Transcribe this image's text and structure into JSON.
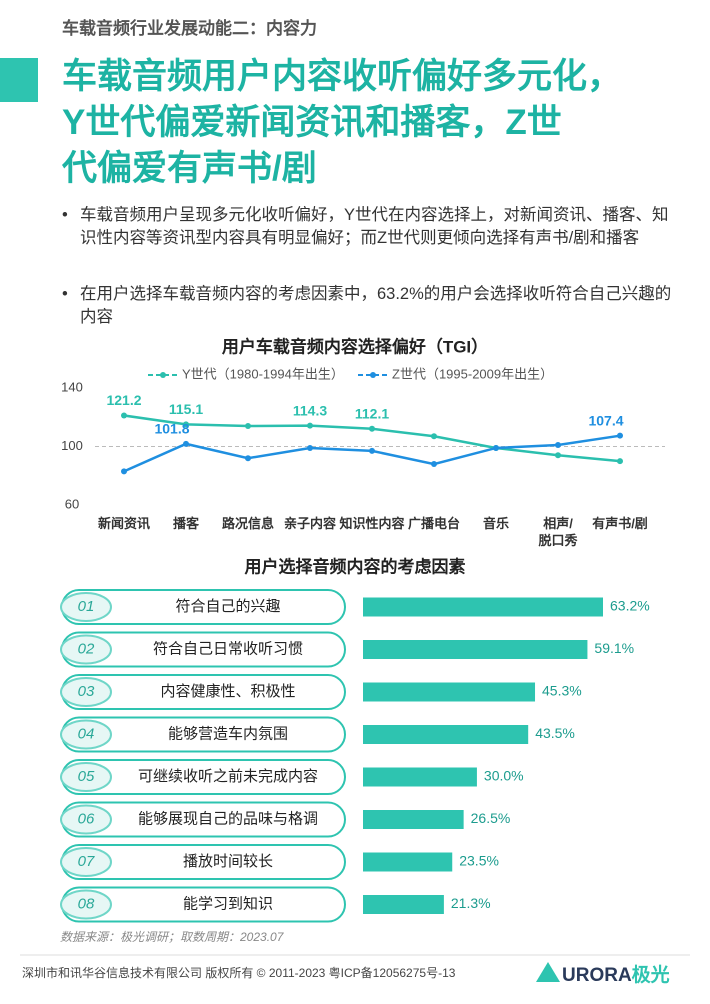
{
  "header": {
    "section": "车载音频行业发展动能二：内容力",
    "title_lines": [
      "车载音频用户内容收听偏好多元化，",
      "Y世代偏爱新闻资讯和播客，Z世",
      "代偏爱有声书/剧"
    ]
  },
  "bullets": [
    "车载音频用户呈现多元化收听偏好，Y世代在内容选择上，对新闻资讯、播客、知识性内容等资讯型内容具有明显偏好；而Z世代则更倾向选择有声书/剧和播客",
    "在用户选择车载音频内容的考虑因素中，63.2%的用户会选择收听符合自己兴趣的内容"
  ],
  "chart_data": [
    {
      "type": "line",
      "title": "用户车载音频内容选择偏好（TGI）",
      "categories": [
        "新闻资讯",
        "播客",
        "路况信息",
        "亲子内容",
        "知识性内容",
        "广播电台",
        "音乐",
        "相声/\n脱口秀",
        "有声书/剧"
      ],
      "series": [
        {
          "name": "Y世代（1980-1994年出生）",
          "color": "#2bbfae",
          "values": [
            121.2,
            115.1,
            114,
            114.3,
            112.1,
            107,
            99,
            94,
            90
          ],
          "value_labels": [
            "121.2",
            "115.1",
            null,
            "114.3",
            "112.1",
            null,
            null,
            null,
            null
          ]
        },
        {
          "name": "Z世代（1995-2009年出生）",
          "color": "#1f8fe0",
          "values": [
            83,
            101.8,
            92,
            99,
            97,
            88,
            99,
            101,
            107.4
          ],
          "value_labels": [
            null,
            "101.8",
            null,
            null,
            null,
            null,
            null,
            null,
            "107.4"
          ]
        }
      ],
      "ylim": [
        60,
        140
      ],
      "yticks": [
        60,
        100,
        140
      ],
      "reference_line": 100
    },
    {
      "type": "bar",
      "orientation": "horizontal",
      "title": "用户选择音频内容的考虑因素",
      "ranks": [
        "01",
        "02",
        "03",
        "04",
        "05",
        "06",
        "07",
        "08"
      ],
      "categories": [
        "符合自己的兴趣",
        "符合自己日常收听习惯",
        "内容健康性、积极性",
        "能够营造车内氛围",
        "可继续收听之前未完成内容",
        "能够展现自己的品味与格调",
        "播放时间较长",
        "能学习到知识"
      ],
      "values": [
        63.2,
        59.1,
        45.3,
        43.5,
        30.0,
        26.5,
        23.5,
        21.3
      ],
      "value_labels": [
        "63.2%",
        "59.1%",
        "45.3%",
        "43.5%",
        "30.0%",
        "26.5%",
        "23.5%",
        "21.3%"
      ],
      "color": "#2ec4b0"
    }
  ],
  "source": "数据来源：极光调研；取数周期：2023.07",
  "footer": {
    "text": "深圳市和讯华谷信息技术有限公司 版权所有 © 2011-2023 粤ICP备12056275号-13",
    "logo_a": "URORA",
    "logo_b": "极光"
  }
}
